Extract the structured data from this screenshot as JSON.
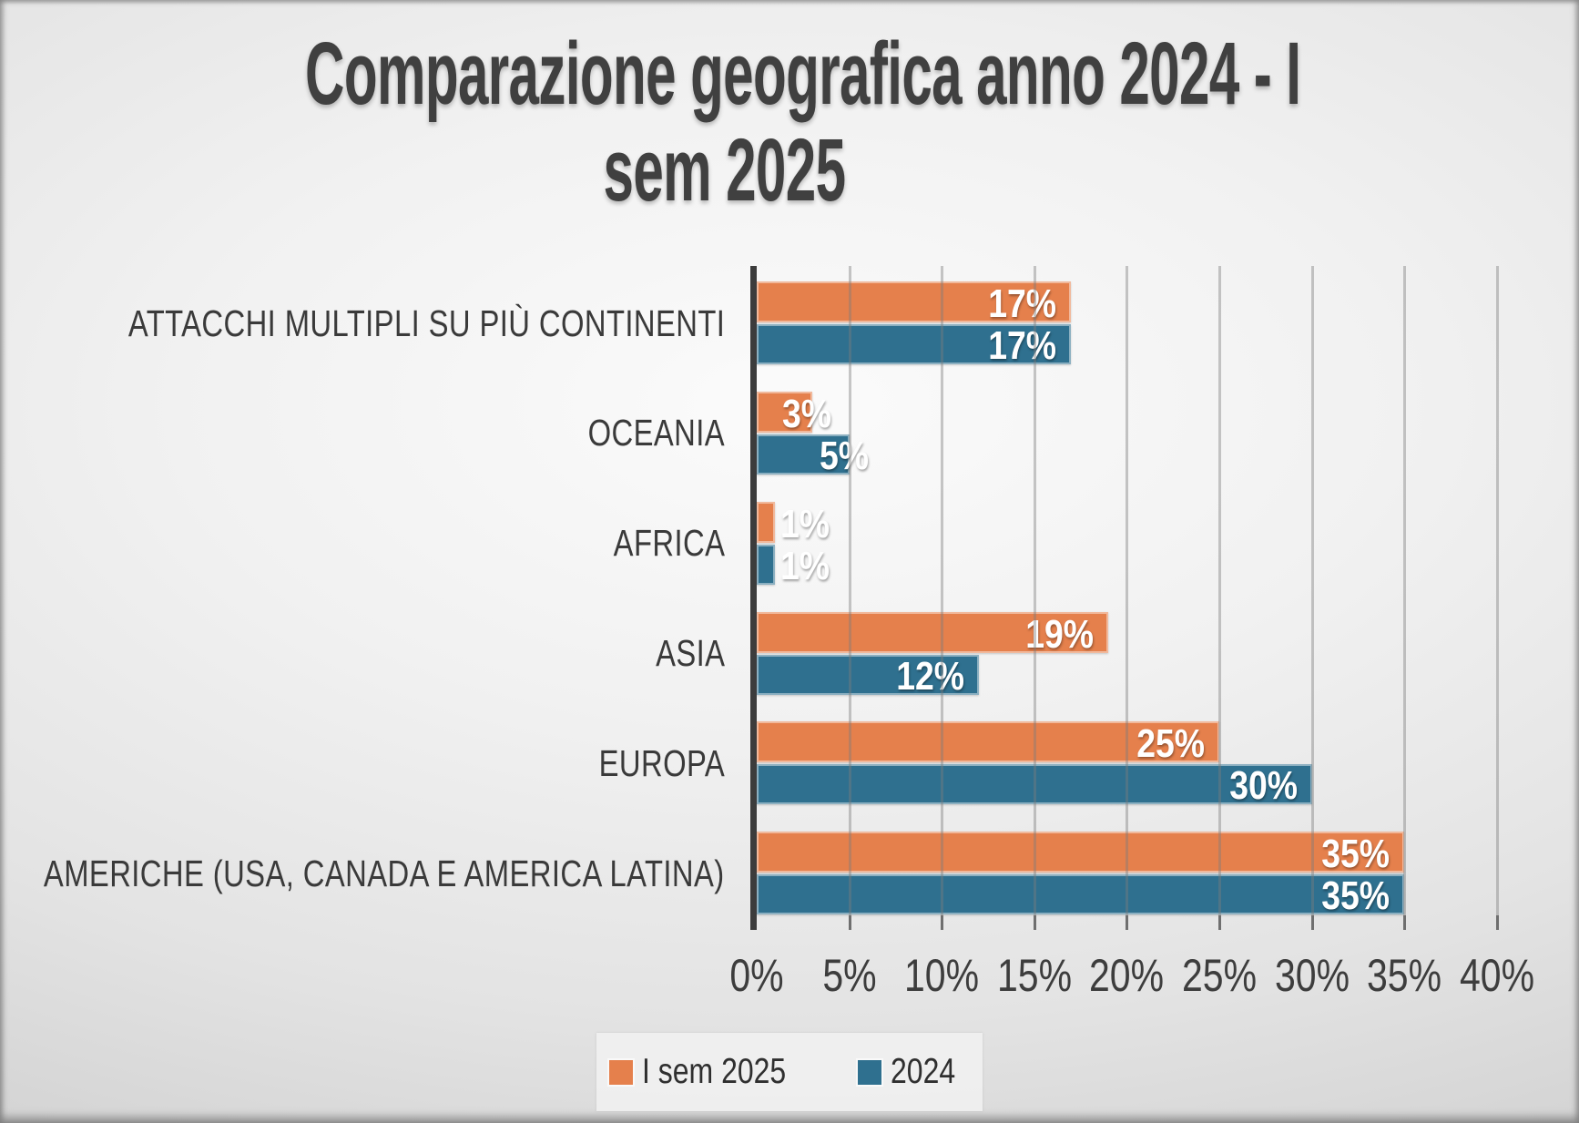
{
  "title": {
    "line1": "Comparazione geografica anno 2024 - I",
    "line2": "sem 2025"
  },
  "chart_data": {
    "type": "bar",
    "orientation": "horizontal",
    "title": "Comparazione geografica anno 2024 - I sem 2025",
    "categories": [
      "ATTACCHI MULTIPLI SU PIÙ CONTINENTI",
      "OCEANIA",
      "AFRICA",
      "ASIA",
      "EUROPA",
      "AMERICHE (USA, CANADA E AMERICA LATINA)"
    ],
    "series": [
      {
        "name": "I sem 2025",
        "color": "#E5804C",
        "values": [
          17,
          3,
          1,
          19,
          25,
          35
        ],
        "data_labels": [
          "17%",
          "3%",
          "1%",
          "19%",
          "25%",
          "35%"
        ]
      },
      {
        "name": "2024",
        "color": "#2F708F",
        "values": [
          17,
          5,
          1,
          12,
          30,
          35
        ],
        "data_labels": [
          "17%",
          "5%",
          "1%",
          "12%",
          "30%",
          "35%"
        ]
      }
    ],
    "x_axis": {
      "min": 0,
      "max": 40,
      "step": 5,
      "tick_labels": [
        "0%",
        "5%",
        "10%",
        "15%",
        "20%",
        "25%",
        "30%",
        "35%",
        "40%"
      ]
    },
    "grid": true,
    "legend": {
      "position": "bottom",
      "entries": [
        "I sem 2025",
        "2024"
      ]
    }
  },
  "colors": {
    "series_1": "#E5804C",
    "series_2": "#2F708F",
    "title_text": "#404040",
    "category_text": "#3a3a3a",
    "axis_text": "#3d3d3d",
    "axis_line": "#3c3c3c",
    "gridline": "#7d7d7d",
    "data_label_text": "#ffffff",
    "legend_bg": "#f3f3f3"
  }
}
